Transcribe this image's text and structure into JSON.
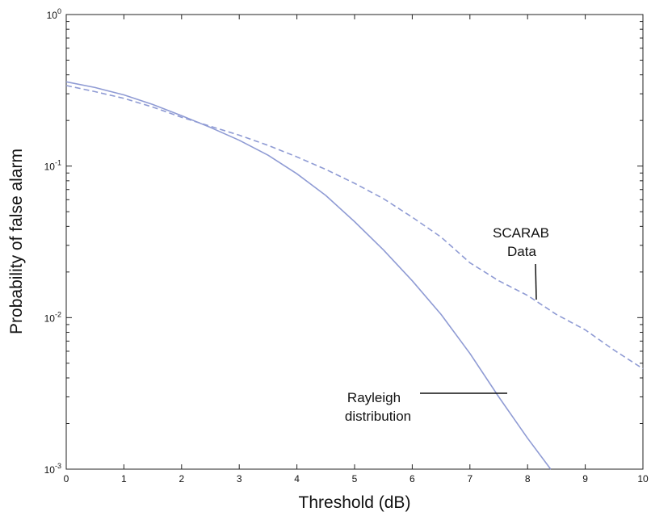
{
  "chart_data": {
    "type": "line",
    "xlabel": "Threshold (dB)",
    "ylabel": "Probability of false alarm",
    "xlim": [
      0,
      10
    ],
    "ylim": [
      0.001,
      1
    ],
    "yscale": "log",
    "grid": false,
    "x_ticks": [
      "0",
      "1",
      "2",
      "3",
      "4",
      "5",
      "6",
      "7",
      "8",
      "9",
      "10"
    ],
    "y_ticks": [
      {
        "base": "10",
        "exp": "-3",
        "value": 0.001
      },
      {
        "base": "10",
        "exp": "-2",
        "value": 0.01
      },
      {
        "base": "10",
        "exp": "-1",
        "value": 0.1
      },
      {
        "base": "10",
        "exp": "0",
        "value": 1
      }
    ],
    "series": [
      {
        "style": "solid",
        "color": "#8f9bd4",
        "x": [
          0,
          0.5,
          1,
          1.5,
          2,
          2.5,
          3,
          3.5,
          4,
          4.5,
          5,
          5.5,
          6,
          6.5,
          7,
          7.5,
          8,
          8.4
        ],
        "y": [
          0.36,
          0.33,
          0.295,
          0.255,
          0.215,
          0.18,
          0.148,
          0.118,
          0.089,
          0.064,
          0.043,
          0.028,
          0.0175,
          0.0105,
          0.0058,
          0.003,
          0.0016,
          0.001
        ]
      },
      {
        "style": "dashed",
        "color": "#8f9bd4",
        "x": [
          0,
          0.5,
          1,
          1.5,
          2,
          2.5,
          3,
          3.5,
          4,
          4.5,
          5,
          5.5,
          6,
          6.5,
          7,
          7.5,
          8,
          8.5,
          9,
          9.5,
          10
        ],
        "y": [
          0.34,
          0.31,
          0.28,
          0.245,
          0.21,
          0.183,
          0.16,
          0.137,
          0.115,
          0.095,
          0.077,
          0.061,
          0.046,
          0.034,
          0.023,
          0.0175,
          0.014,
          0.0105,
          0.0083,
          0.0061,
          0.0046
        ]
      }
    ],
    "annotations": [
      {
        "lines": [
          "SCARAB",
          "Data"
        ]
      },
      {
        "lines": [
          "Rayleigh",
          "distribution"
        ]
      }
    ]
  }
}
